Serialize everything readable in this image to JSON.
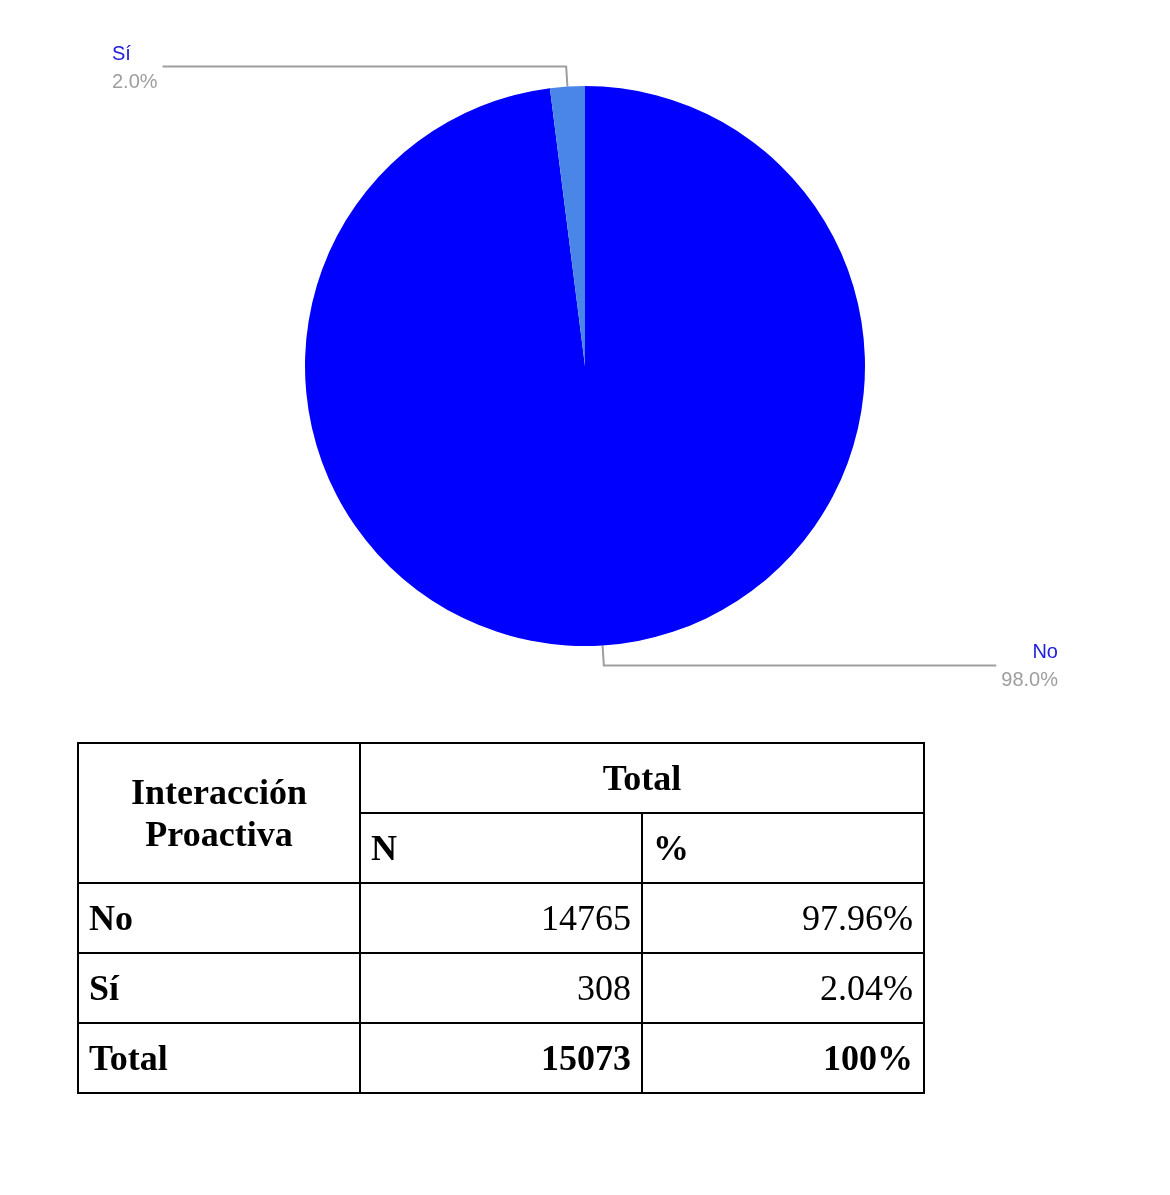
{
  "chart_data": [
    {
      "type": "pie",
      "categories": [
        "No",
        "Sí"
      ],
      "values": [
        98.0,
        2.0
      ],
      "colors": [
        "#0000ff",
        "#4a86e8"
      ],
      "value_labels": [
        "98.0%",
        "2.0%"
      ]
    },
    {
      "type": "other",
      "data_labels": true,
      "legend_title": "Interacción Proactiva",
      "title": "Total",
      "categories": [
        "No",
        "Sí",
        "Total"
      ],
      "series": [
        {
          "name": "N",
          "values": [
            14765,
            308,
            15073
          ]
        },
        {
          "name": "%",
          "values": [
            97.96,
            2.04,
            100
          ],
          "value_labels": [
            "97.96%",
            "2.04%",
            "100%"
          ]
        }
      ]
    }
  ]
}
